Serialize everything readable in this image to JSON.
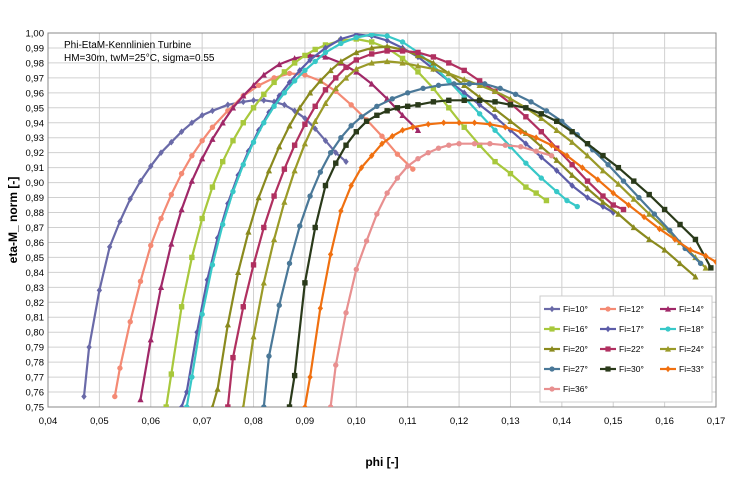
{
  "chart_data": {
    "type": "line",
    "annotation": [
      "Phi-EtaM-Kennlinien Turbine",
      "HM=30m, twM=25°C, sigma=0.55"
    ],
    "xlabel": "phi [-]",
    "ylabel": "eta-M_ norm [-]",
    "xlim": [
      0.04,
      0.17
    ],
    "ylim": [
      0.75,
      1.0
    ],
    "xticks": [
      "0,04",
      "0,05",
      "0,06",
      "0,07",
      "0,08",
      "0,09",
      "0,10",
      "0,11",
      "0,12",
      "0,13",
      "0,14",
      "0,15",
      "0,16",
      "0,17"
    ],
    "yticks": [
      "0,75",
      "0,76",
      "0,77",
      "0,78",
      "0,79",
      "0,80",
      "0,81",
      "0,82",
      "0,83",
      "0,84",
      "0,85",
      "0,86",
      "0,87",
      "0,88",
      "0,89",
      "0,90",
      "0,91",
      "0,92",
      "0,93",
      "0,94",
      "0,95",
      "0,96",
      "0,97",
      "0,98",
      "0,99",
      "1,00"
    ],
    "grid": true,
    "legend_position": "bottom-right",
    "series": [
      {
        "name": "Fi=10°",
        "color": "#6a6aa8",
        "marker": "diamond",
        "x": [
          0.047,
          0.048,
          0.05,
          0.052,
          0.054,
          0.056,
          0.058,
          0.06,
          0.062,
          0.064,
          0.066,
          0.068,
          0.07,
          0.072,
          0.075,
          0.078,
          0.08,
          0.082,
          0.084,
          0.086,
          0.088,
          0.09,
          0.092,
          0.094,
          0.096,
          0.098
        ],
        "y": [
          0.757,
          0.79,
          0.828,
          0.857,
          0.874,
          0.889,
          0.901,
          0.911,
          0.92,
          0.927,
          0.934,
          0.94,
          0.945,
          0.948,
          0.952,
          0.954,
          0.955,
          0.955,
          0.954,
          0.952,
          0.948,
          0.943,
          0.936,
          0.928,
          0.92,
          0.914
        ]
      },
      {
        "name": "Fi=12°",
        "color": "#f48a74",
        "marker": "circle",
        "x": [
          0.053,
          0.054,
          0.056,
          0.058,
          0.06,
          0.062,
          0.064,
          0.066,
          0.068,
          0.07,
          0.072,
          0.075,
          0.078,
          0.081,
          0.084,
          0.087,
          0.09,
          0.093,
          0.096,
          0.099,
          0.102,
          0.105,
          0.108,
          0.111
        ],
        "y": [
          0.757,
          0.776,
          0.807,
          0.834,
          0.858,
          0.876,
          0.892,
          0.906,
          0.918,
          0.928,
          0.937,
          0.948,
          0.958,
          0.965,
          0.97,
          0.973,
          0.972,
          0.968,
          0.961,
          0.952,
          0.942,
          0.931,
          0.919,
          0.909
        ]
      },
      {
        "name": "Fi=14°",
        "color": "#a02868",
        "marker": "triangle",
        "x": [
          0.058,
          0.06,
          0.062,
          0.064,
          0.066,
          0.068,
          0.07,
          0.072,
          0.074,
          0.076,
          0.078,
          0.08,
          0.082,
          0.085,
          0.088,
          0.091,
          0.094,
          0.097,
          0.1,
          0.103,
          0.106,
          0.109,
          0.112
        ],
        "y": [
          0.755,
          0.795,
          0.83,
          0.859,
          0.882,
          0.901,
          0.916,
          0.929,
          0.94,
          0.95,
          0.958,
          0.965,
          0.972,
          0.979,
          0.983,
          0.985,
          0.984,
          0.98,
          0.974,
          0.966,
          0.956,
          0.945,
          0.935
        ]
      },
      {
        "name": "Fi=16°",
        "color": "#a8c83c",
        "marker": "square",
        "x": [
          0.063,
          0.064,
          0.066,
          0.068,
          0.07,
          0.072,
          0.074,
          0.076,
          0.078,
          0.08,
          0.082,
          0.084,
          0.086,
          0.088,
          0.09,
          0.092,
          0.094,
          0.097,
          0.1,
          0.103,
          0.106,
          0.109,
          0.112,
          0.115,
          0.118,
          0.121,
          0.124,
          0.127,
          0.13,
          0.133,
          0.135,
          0.137
        ],
        "y": [
          0.75,
          0.772,
          0.817,
          0.85,
          0.876,
          0.897,
          0.914,
          0.928,
          0.94,
          0.95,
          0.959,
          0.967,
          0.974,
          0.98,
          0.985,
          0.989,
          0.992,
          0.995,
          0.996,
          0.994,
          0.99,
          0.983,
          0.974,
          0.963,
          0.95,
          0.937,
          0.925,
          0.914,
          0.906,
          0.897,
          0.893,
          0.888
        ]
      },
      {
        "name": "Fi=17°",
        "color": "#5c5ca8",
        "marker": "diamond",
        "x": [
          0.066,
          0.067,
          0.069,
          0.071,
          0.073,
          0.075,
          0.077,
          0.079,
          0.081,
          0.083,
          0.085,
          0.087,
          0.089,
          0.091,
          0.094,
          0.097,
          0.1,
          0.103,
          0.106,
          0.109,
          0.112,
          0.115,
          0.118,
          0.121,
          0.124,
          0.127,
          0.13,
          0.133,
          0.136,
          0.139,
          0.142,
          0.145,
          0.148,
          0.15
        ],
        "y": [
          0.75,
          0.76,
          0.8,
          0.835,
          0.863,
          0.886,
          0.905,
          0.921,
          0.935,
          0.947,
          0.958,
          0.967,
          0.975,
          0.982,
          0.99,
          0.996,
          0.999,
          0.998,
          0.995,
          0.99,
          0.984,
          0.976,
          0.968,
          0.96,
          0.952,
          0.944,
          0.935,
          0.926,
          0.917,
          0.908,
          0.898,
          0.89,
          0.884,
          0.88
        ]
      },
      {
        "name": "Fi=18°",
        "color": "#38c8c8",
        "marker": "circle",
        "x": [
          0.067,
          0.068,
          0.07,
          0.072,
          0.074,
          0.076,
          0.078,
          0.08,
          0.082,
          0.084,
          0.086,
          0.088,
          0.09,
          0.092,
          0.094,
          0.097,
          0.1,
          0.103,
          0.106,
          0.109,
          0.112,
          0.115,
          0.118,
          0.121,
          0.124,
          0.127,
          0.13,
          0.133,
          0.136,
          0.139,
          0.141,
          0.143
        ],
        "y": [
          0.75,
          0.77,
          0.812,
          0.845,
          0.872,
          0.894,
          0.912,
          0.927,
          0.94,
          0.951,
          0.96,
          0.968,
          0.975,
          0.981,
          0.987,
          0.993,
          0.997,
          0.999,
          0.998,
          0.994,
          0.987,
          0.978,
          0.968,
          0.957,
          0.946,
          0.935,
          0.924,
          0.913,
          0.903,
          0.894,
          0.888,
          0.884
        ]
      },
      {
        "name": "Fi=20°",
        "color": "#8a8a1e",
        "marker": "triangle",
        "x": [
          0.072,
          0.073,
          0.075,
          0.077,
          0.079,
          0.081,
          0.083,
          0.085,
          0.087,
          0.089,
          0.091,
          0.093,
          0.095,
          0.097,
          0.1,
          0.103,
          0.106,
          0.109,
          0.112,
          0.115,
          0.118,
          0.121,
          0.124,
          0.127,
          0.13,
          0.133,
          0.136,
          0.139,
          0.142,
          0.145,
          0.148,
          0.151,
          0.154,
          0.157,
          0.16,
          0.163,
          0.166
        ],
        "y": [
          0.75,
          0.762,
          0.805,
          0.84,
          0.867,
          0.89,
          0.908,
          0.924,
          0.938,
          0.95,
          0.96,
          0.968,
          0.975,
          0.981,
          0.987,
          0.99,
          0.991,
          0.989,
          0.985,
          0.98,
          0.973,
          0.965,
          0.957,
          0.949,
          0.941,
          0.933,
          0.924,
          0.915,
          0.905,
          0.896,
          0.887,
          0.879,
          0.87,
          0.862,
          0.855,
          0.846,
          0.837
        ]
      },
      {
        "name": "Fi=22°",
        "color": "#b03060",
        "marker": "square",
        "x": [
          0.075,
          0.076,
          0.078,
          0.08,
          0.082,
          0.084,
          0.086,
          0.088,
          0.09,
          0.092,
          0.094,
          0.096,
          0.098,
          0.1,
          0.103,
          0.106,
          0.109,
          0.112,
          0.115,
          0.118,
          0.121,
          0.124,
          0.127,
          0.13,
          0.133,
          0.136,
          0.139,
          0.142,
          0.145,
          0.148,
          0.15,
          0.152
        ],
        "y": [
          0.75,
          0.783,
          0.817,
          0.845,
          0.87,
          0.891,
          0.909,
          0.925,
          0.939,
          0.951,
          0.962,
          0.97,
          0.977,
          0.982,
          0.986,
          0.988,
          0.988,
          0.987,
          0.984,
          0.98,
          0.975,
          0.968,
          0.961,
          0.953,
          0.944,
          0.934,
          0.923,
          0.912,
          0.901,
          0.891,
          0.885,
          0.882
        ]
      },
      {
        "name": "Fi=24°",
        "color": "#9a9a28",
        "marker": "triangle",
        "x": [
          0.078,
          0.08,
          0.082,
          0.084,
          0.086,
          0.088,
          0.09,
          0.092,
          0.094,
          0.096,
          0.098,
          0.1,
          0.103,
          0.106,
          0.109,
          0.112,
          0.115,
          0.118,
          0.121,
          0.124,
          0.127,
          0.13,
          0.133,
          0.136,
          0.139,
          0.142,
          0.145,
          0.148,
          0.151,
          0.154,
          0.157,
          0.16,
          0.163,
          0.166,
          0.168
        ],
        "y": [
          0.75,
          0.797,
          0.833,
          0.862,
          0.887,
          0.908,
          0.926,
          0.941,
          0.953,
          0.963,
          0.97,
          0.976,
          0.98,
          0.981,
          0.98,
          0.978,
          0.976,
          0.973,
          0.969,
          0.965,
          0.961,
          0.956,
          0.95,
          0.943,
          0.935,
          0.927,
          0.918,
          0.908,
          0.899,
          0.889,
          0.879,
          0.87,
          0.86,
          0.85,
          0.843
        ]
      },
      {
        "name": "Fi=27°",
        "color": "#4a7898",
        "marker": "circle",
        "x": [
          0.082,
          0.083,
          0.085,
          0.087,
          0.089,
          0.091,
          0.093,
          0.095,
          0.097,
          0.099,
          0.101,
          0.104,
          0.107,
          0.11,
          0.113,
          0.116,
          0.119,
          0.122,
          0.125,
          0.128,
          0.131,
          0.134,
          0.137,
          0.14,
          0.143,
          0.146,
          0.149,
          0.152,
          0.155,
          0.158,
          0.161,
          0.164,
          0.167
        ],
        "y": [
          0.75,
          0.784,
          0.818,
          0.846,
          0.871,
          0.891,
          0.907,
          0.92,
          0.93,
          0.938,
          0.944,
          0.951,
          0.956,
          0.96,
          0.963,
          0.965,
          0.966,
          0.966,
          0.966,
          0.963,
          0.959,
          0.954,
          0.948,
          0.941,
          0.932,
          0.922,
          0.912,
          0.901,
          0.89,
          0.879,
          0.868,
          0.856,
          0.846
        ]
      },
      {
        "name": "Fi=30°",
        "color": "#2a3a1a",
        "marker": "square",
        "x": [
          0.087,
          0.088,
          0.09,
          0.092,
          0.094,
          0.096,
          0.098,
          0.1,
          0.102,
          0.104,
          0.106,
          0.108,
          0.11,
          0.112,
          0.115,
          0.118,
          0.121,
          0.124,
          0.127,
          0.13,
          0.133,
          0.136,
          0.139,
          0.142,
          0.145,
          0.148,
          0.151,
          0.154,
          0.157,
          0.16,
          0.163,
          0.166,
          0.169
        ],
        "y": [
          0.75,
          0.771,
          0.833,
          0.87,
          0.898,
          0.913,
          0.925,
          0.934,
          0.941,
          0.945,
          0.948,
          0.95,
          0.951,
          0.952,
          0.954,
          0.955,
          0.955,
          0.955,
          0.954,
          0.952,
          0.95,
          0.946,
          0.941,
          0.934,
          0.926,
          0.918,
          0.91,
          0.901,
          0.892,
          0.882,
          0.872,
          0.862,
          0.843
        ]
      },
      {
        "name": "Fi=33°",
        "color": "#f07010",
        "marker": "diamond",
        "x": [
          0.09,
          0.091,
          0.093,
          0.095,
          0.097,
          0.099,
          0.101,
          0.103,
          0.105,
          0.107,
          0.109,
          0.111,
          0.114,
          0.117,
          0.12,
          0.123,
          0.126,
          0.129,
          0.132,
          0.135,
          0.138,
          0.141,
          0.144,
          0.147,
          0.15,
          0.153,
          0.156,
          0.159,
          0.162,
          0.165,
          0.168,
          0.17
        ],
        "y": [
          0.75,
          0.77,
          0.816,
          0.852,
          0.881,
          0.898,
          0.91,
          0.918,
          0.926,
          0.931,
          0.935,
          0.937,
          0.939,
          0.94,
          0.94,
          0.94,
          0.939,
          0.937,
          0.934,
          0.93,
          0.925,
          0.918,
          0.91,
          0.902,
          0.893,
          0.885,
          0.877,
          0.869,
          0.862,
          0.855,
          0.851,
          0.847
        ]
      },
      {
        "name": "Fi=36°",
        "color": "#e89090",
        "marker": "circle",
        "x": [
          0.095,
          0.096,
          0.098,
          0.1,
          0.102,
          0.104,
          0.106,
          0.108,
          0.11,
          0.112,
          0.114,
          0.116,
          0.118,
          0.12,
          0.123,
          0.126,
          0.129,
          0.132,
          0.135,
          0.138
        ],
        "y": [
          0.75,
          0.778,
          0.813,
          0.842,
          0.861,
          0.879,
          0.893,
          0.903,
          0.911,
          0.916,
          0.92,
          0.923,
          0.925,
          0.926,
          0.926,
          0.926,
          0.925,
          0.924,
          0.921,
          0.918
        ]
      }
    ]
  }
}
